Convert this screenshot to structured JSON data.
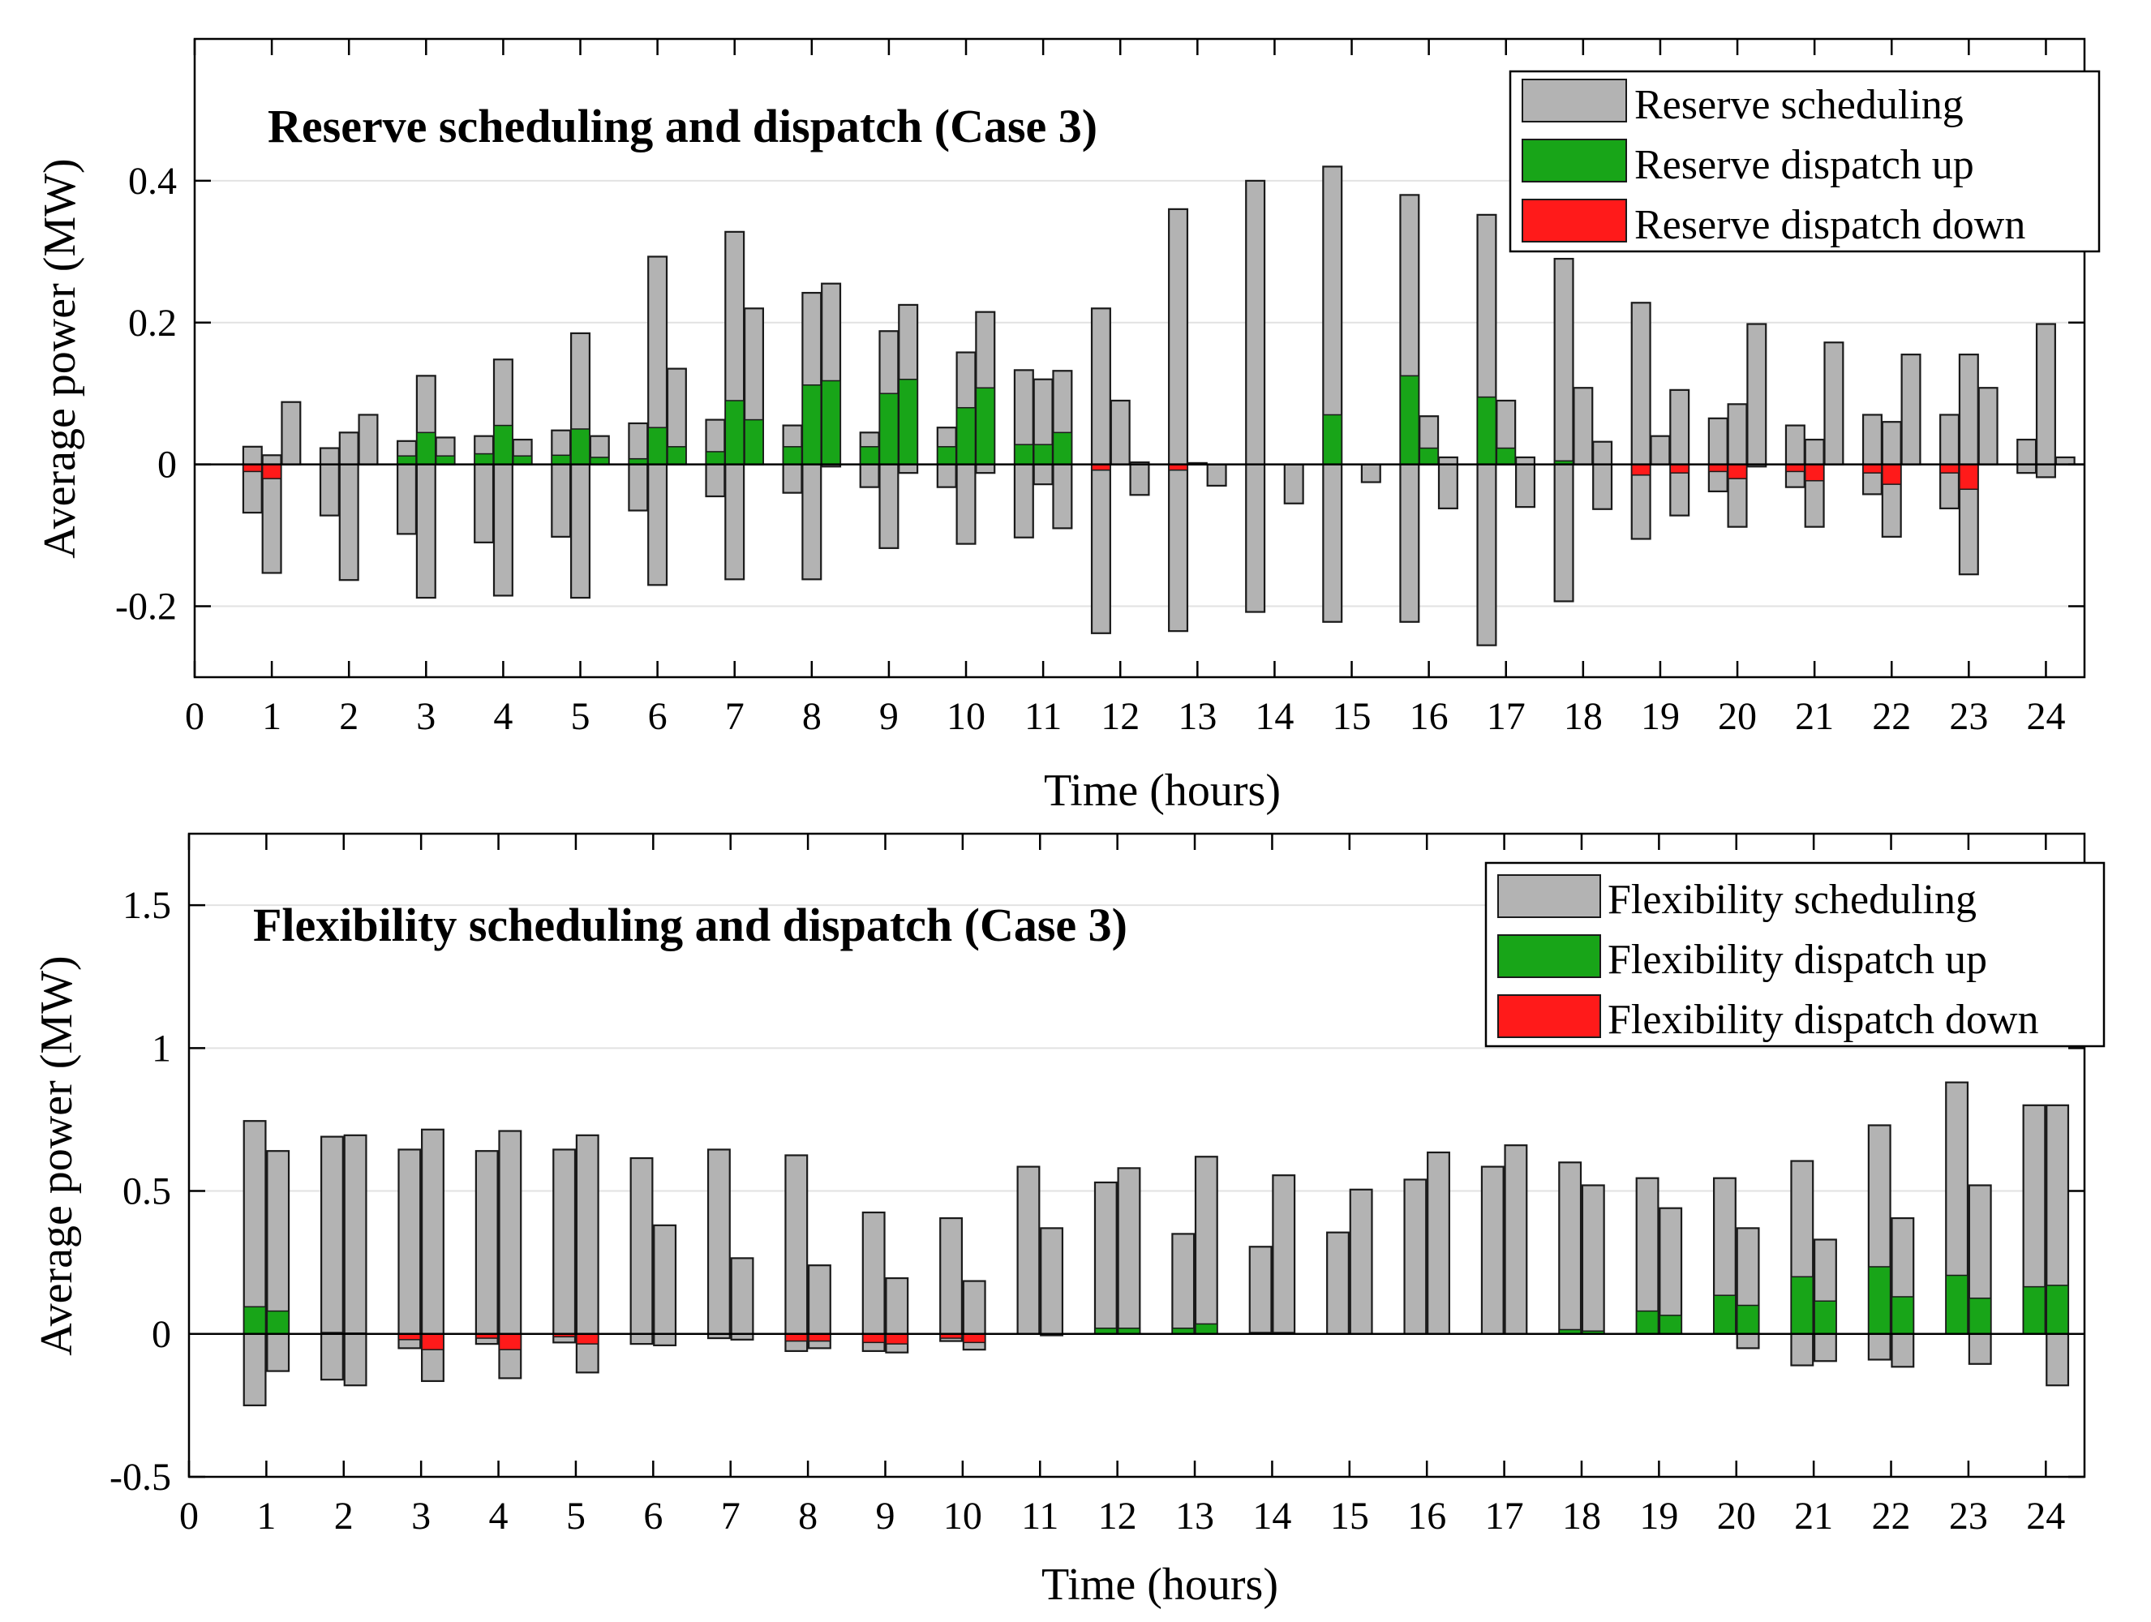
{
  "colors": {
    "scheduling": "#b3b3b3",
    "up": "#18a518",
    "down": "#ff1a1a",
    "edge": "#1a1a1a",
    "grid": "#e2e2e2"
  },
  "chart_data": [
    {
      "type": "bar",
      "title": "Reserve scheduling and dispatch (Case 3)",
      "xlabel": "Time (hours)",
      "ylabel": "Average power (MW)",
      "xlim": [
        0,
        24.5
      ],
      "ylim": [
        -0.3,
        0.6
      ],
      "xticks": [
        0,
        1,
        2,
        3,
        4,
        5,
        6,
        7,
        8,
        9,
        10,
        11,
        12,
        13,
        14,
        15,
        16,
        17,
        18,
        19,
        20,
        21,
        22,
        23,
        24
      ],
      "xticklabels": [
        "0",
        "1",
        "2",
        "3",
        "4",
        "5",
        "6",
        "7",
        "8",
        "9",
        "10",
        "11",
        "12",
        "13",
        "14",
        "15",
        "16",
        "17",
        "18",
        "19",
        "20",
        "21",
        "22",
        "23",
        "24"
      ],
      "yticks": [
        -0.2,
        0,
        0.2,
        0.4
      ],
      "yticklabels": [
        "-0.2",
        "0",
        "0.2",
        "0.4"
      ],
      "legend": [
        "Reserve scheduling",
        "Reserve dispatch up",
        "Reserve dispatch down"
      ],
      "legend_position": "top-right",
      "grid": true,
      "bar_width": 0.24,
      "bars": [
        {
          "x": 0.75,
          "top": 0.025,
          "bottom": -0.068,
          "up": 0,
          "down": -0.01
        },
        {
          "x": 1.0,
          "top": 0.013,
          "bottom": -0.153,
          "up": 0,
          "down": -0.02
        },
        {
          "x": 1.25,
          "top": 0.088,
          "bottom": 0,
          "up": 0,
          "down": 0
        },
        {
          "x": 1.75,
          "top": 0.023,
          "bottom": -0.072,
          "up": 0,
          "down": 0
        },
        {
          "x": 2.0,
          "top": 0.045,
          "bottom": -0.163,
          "up": 0,
          "down": 0
        },
        {
          "x": 2.25,
          "top": 0.07,
          "bottom": 0,
          "up": 0,
          "down": 0
        },
        {
          "x": 2.75,
          "top": 0.033,
          "bottom": -0.098,
          "up": 0.012,
          "down": 0
        },
        {
          "x": 3.0,
          "top": 0.125,
          "bottom": -0.188,
          "up": 0.045,
          "down": 0
        },
        {
          "x": 3.25,
          "top": 0.038,
          "bottom": 0,
          "up": 0.012,
          "down": 0
        },
        {
          "x": 3.75,
          "top": 0.04,
          "bottom": -0.11,
          "up": 0.015,
          "down": 0
        },
        {
          "x": 4.0,
          "top": 0.148,
          "bottom": -0.185,
          "up": 0.055,
          "down": 0
        },
        {
          "x": 4.25,
          "top": 0.035,
          "bottom": 0,
          "up": 0.012,
          "down": 0
        },
        {
          "x": 4.75,
          "top": 0.048,
          "bottom": -0.102,
          "up": 0.013,
          "down": 0
        },
        {
          "x": 5.0,
          "top": 0.185,
          "bottom": -0.188,
          "up": 0.05,
          "down": 0
        },
        {
          "x": 5.25,
          "top": 0.04,
          "bottom": 0,
          "up": 0.01,
          "down": 0
        },
        {
          "x": 5.75,
          "top": 0.058,
          "bottom": -0.065,
          "up": 0.008,
          "down": 0
        },
        {
          "x": 6.0,
          "top": 0.293,
          "bottom": -0.17,
          "up": 0.052,
          "down": 0
        },
        {
          "x": 6.25,
          "top": 0.135,
          "bottom": 0,
          "up": 0.025,
          "down": 0
        },
        {
          "x": 6.75,
          "top": 0.063,
          "bottom": -0.045,
          "up": 0.018,
          "down": 0
        },
        {
          "x": 7.0,
          "top": 0.328,
          "bottom": -0.162,
          "up": 0.09,
          "down": 0
        },
        {
          "x": 7.25,
          "top": 0.22,
          "bottom": 0,
          "up": 0.063,
          "down": 0
        },
        {
          "x": 7.75,
          "top": 0.055,
          "bottom": -0.04,
          "up": 0.025,
          "down": 0
        },
        {
          "x": 8.0,
          "top": 0.242,
          "bottom": -0.162,
          "up": 0.112,
          "down": 0
        },
        {
          "x": 8.25,
          "top": 0.255,
          "bottom": -0.003,
          "up": 0.118,
          "down": 0
        },
        {
          "x": 8.75,
          "top": 0.045,
          "bottom": -0.032,
          "up": 0.025,
          "down": 0
        },
        {
          "x": 9.0,
          "top": 0.188,
          "bottom": -0.118,
          "up": 0.1,
          "down": 0
        },
        {
          "x": 9.25,
          "top": 0.225,
          "bottom": -0.012,
          "up": 0.12,
          "down": 0
        },
        {
          "x": 9.75,
          "top": 0.052,
          "bottom": -0.032,
          "up": 0.025,
          "down": 0
        },
        {
          "x": 10.0,
          "top": 0.158,
          "bottom": -0.112,
          "up": 0.08,
          "down": 0
        },
        {
          "x": 10.25,
          "top": 0.215,
          "bottom": -0.012,
          "up": 0.108,
          "down": 0
        },
        {
          "x": 10.75,
          "top": 0.133,
          "bottom": -0.103,
          "up": 0.028,
          "down": 0
        },
        {
          "x": 11.0,
          "top": 0.12,
          "bottom": -0.028,
          "up": 0.028,
          "down": 0
        },
        {
          "x": 11.25,
          "top": 0.132,
          "bottom": -0.09,
          "up": 0.045,
          "down": 0
        },
        {
          "x": 11.75,
          "top": 0.22,
          "bottom": -0.238,
          "up": 0,
          "down": -0.008
        },
        {
          "x": 12.0,
          "top": 0.09,
          "bottom": 0,
          "up": 0,
          "down": 0
        },
        {
          "x": 12.25,
          "top": 0.003,
          "bottom": -0.043,
          "up": 0,
          "down": 0
        },
        {
          "x": 12.75,
          "top": 0.36,
          "bottom": -0.235,
          "up": 0,
          "down": -0.008
        },
        {
          "x": 13.0,
          "top": 0.002,
          "bottom": 0,
          "up": 0,
          "down": 0
        },
        {
          "x": 13.25,
          "top": 0,
          "bottom": -0.03,
          "up": 0,
          "down": 0
        },
        {
          "x": 13.75,
          "top": 0.4,
          "bottom": -0.208,
          "up": 0,
          "down": 0
        },
        {
          "x": 14.25,
          "top": 0,
          "bottom": -0.055,
          "up": 0,
          "down": 0
        },
        {
          "x": 14.75,
          "top": 0.42,
          "bottom": -0.222,
          "up": 0.07,
          "down": 0
        },
        {
          "x": 15.25,
          "top": 0,
          "bottom": -0.025,
          "up": 0,
          "down": 0
        },
        {
          "x": 15.75,
          "top": 0.38,
          "bottom": -0.222,
          "up": 0.125,
          "down": 0
        },
        {
          "x": 16.0,
          "top": 0.068,
          "bottom": 0,
          "up": 0.023,
          "down": 0
        },
        {
          "x": 16.25,
          "top": 0.01,
          "bottom": -0.062,
          "up": 0,
          "down": 0
        },
        {
          "x": 16.75,
          "top": 0.352,
          "bottom": -0.255,
          "up": 0.095,
          "down": 0
        },
        {
          "x": 17.0,
          "top": 0.09,
          "bottom": 0,
          "up": 0.023,
          "down": 0
        },
        {
          "x": 17.25,
          "top": 0.01,
          "bottom": -0.06,
          "up": 0,
          "down": 0
        },
        {
          "x": 17.75,
          "top": 0.29,
          "bottom": -0.193,
          "up": 0.005,
          "down": 0
        },
        {
          "x": 18.0,
          "top": 0.108,
          "bottom": 0,
          "up": 0,
          "down": 0
        },
        {
          "x": 18.25,
          "top": 0.032,
          "bottom": -0.063,
          "up": 0,
          "down": 0
        },
        {
          "x": 18.75,
          "top": 0.228,
          "bottom": -0.105,
          "up": 0,
          "down": -0.015
        },
        {
          "x": 19.0,
          "top": 0.04,
          "bottom": 0,
          "up": 0,
          "down": 0
        },
        {
          "x": 19.25,
          "top": 0.105,
          "bottom": -0.072,
          "up": 0,
          "down": -0.012
        },
        {
          "x": 19.75,
          "top": 0.065,
          "bottom": -0.038,
          "up": 0,
          "down": -0.01
        },
        {
          "x": 20.0,
          "top": 0.085,
          "bottom": -0.088,
          "up": 0,
          "down": -0.02
        },
        {
          "x": 20.25,
          "top": 0.198,
          "bottom": -0.003,
          "up": 0,
          "down": 0
        },
        {
          "x": 20.75,
          "top": 0.055,
          "bottom": -0.032,
          "up": 0,
          "down": -0.01
        },
        {
          "x": 21.0,
          "top": 0.035,
          "bottom": -0.088,
          "up": 0,
          "down": -0.023
        },
        {
          "x": 21.25,
          "top": 0.172,
          "bottom": 0,
          "up": 0,
          "down": 0
        },
        {
          "x": 21.75,
          "top": 0.07,
          "bottom": -0.042,
          "up": 0,
          "down": -0.012
        },
        {
          "x": 22.0,
          "top": 0.06,
          "bottom": -0.102,
          "up": 0,
          "down": -0.028
        },
        {
          "x": 22.25,
          "top": 0.155,
          "bottom": 0,
          "up": 0,
          "down": 0
        },
        {
          "x": 22.75,
          "top": 0.07,
          "bottom": -0.062,
          "up": 0,
          "down": -0.012
        },
        {
          "x": 23.0,
          "top": 0.155,
          "bottom": -0.155,
          "up": 0,
          "down": -0.035
        },
        {
          "x": 23.25,
          "top": 0.108,
          "bottom": 0,
          "up": 0,
          "down": 0
        },
        {
          "x": 23.75,
          "top": 0.035,
          "bottom": -0.012,
          "up": 0,
          "down": 0
        },
        {
          "x": 24.0,
          "top": 0.198,
          "bottom": -0.018,
          "up": 0,
          "down": 0
        },
        {
          "x": 24.25,
          "top": 0.01,
          "bottom": 0,
          "up": 0,
          "down": 0
        }
      ]
    },
    {
      "type": "bar",
      "title": "Flexibility scheduling and dispatch (Case 3)",
      "xlabel": "Time (hours)",
      "ylabel": "Average power (MW)",
      "xlim": [
        0,
        24.5
      ],
      "ylim": [
        -0.5,
        1.75
      ],
      "xticks": [
        0,
        1,
        2,
        3,
        4,
        5,
        6,
        7,
        8,
        9,
        10,
        11,
        12,
        13,
        14,
        15,
        16,
        17,
        18,
        19,
        20,
        21,
        22,
        23,
        24
      ],
      "xticklabels": [
        "0",
        "1",
        "2",
        "3",
        "4",
        "5",
        "6",
        "7",
        "8",
        "9",
        "10",
        "11",
        "12",
        "13",
        "14",
        "15",
        "16",
        "17",
        "18",
        "19",
        "20",
        "21",
        "22",
        "23",
        "24"
      ],
      "yticks": [
        -0.5,
        0,
        0.5,
        1,
        1.5
      ],
      "yticklabels": [
        "-0.5",
        "0",
        "0.5",
        "1",
        "1.5"
      ],
      "legend": [
        "Flexibility scheduling",
        "Flexibility dispatch up",
        "Flexibility dispatch down"
      ],
      "legend_position": "top-right",
      "grid": true,
      "bar_width": 0.28,
      "bars": [
        {
          "x": 0.85,
          "top": 0.745,
          "bottom": -0.25,
          "up": 0.095,
          "down": 0
        },
        {
          "x": 1.15,
          "top": 0.64,
          "bottom": -0.13,
          "up": 0.08,
          "down": 0
        },
        {
          "x": 1.85,
          "top": 0.69,
          "bottom": -0.16,
          "up": 0.005,
          "down": 0
        },
        {
          "x": 2.15,
          "top": 0.695,
          "bottom": -0.18,
          "up": 0.003,
          "down": 0
        },
        {
          "x": 2.85,
          "top": 0.645,
          "bottom": -0.05,
          "up": 0,
          "down": -0.02
        },
        {
          "x": 3.15,
          "top": 0.715,
          "bottom": -0.165,
          "up": 0,
          "down": -0.055
        },
        {
          "x": 3.85,
          "top": 0.64,
          "bottom": -0.035,
          "up": 0,
          "down": -0.015
        },
        {
          "x": 4.15,
          "top": 0.71,
          "bottom": -0.155,
          "up": 0,
          "down": -0.055
        },
        {
          "x": 4.85,
          "top": 0.645,
          "bottom": -0.03,
          "up": 0,
          "down": -0.01
        },
        {
          "x": 5.15,
          "top": 0.695,
          "bottom": -0.135,
          "up": 0,
          "down": -0.035
        },
        {
          "x": 5.85,
          "top": 0.615,
          "bottom": -0.035,
          "up": 0,
          "down": 0
        },
        {
          "x": 6.15,
          "top": 0.38,
          "bottom": -0.04,
          "up": 0,
          "down": 0
        },
        {
          "x": 6.85,
          "top": 0.645,
          "bottom": -0.015,
          "up": 0,
          "down": 0
        },
        {
          "x": 7.15,
          "top": 0.265,
          "bottom": -0.02,
          "up": 0,
          "down": 0
        },
        {
          "x": 7.85,
          "top": 0.625,
          "bottom": -0.06,
          "up": 0,
          "down": -0.025
        },
        {
          "x": 8.15,
          "top": 0.24,
          "bottom": -0.05,
          "up": 0,
          "down": -0.025
        },
        {
          "x": 8.85,
          "top": 0.425,
          "bottom": -0.06,
          "up": 0,
          "down": -0.03
        },
        {
          "x": 9.15,
          "top": 0.195,
          "bottom": -0.065,
          "up": 0,
          "down": -0.035
        },
        {
          "x": 9.85,
          "top": 0.405,
          "bottom": -0.025,
          "up": 0,
          "down": -0.015
        },
        {
          "x": 10.15,
          "top": 0.185,
          "bottom": -0.055,
          "up": 0,
          "down": -0.03
        },
        {
          "x": 10.85,
          "top": 0.585,
          "bottom": 0,
          "up": 0,
          "down": 0
        },
        {
          "x": 11.15,
          "top": 0.37,
          "bottom": -0.005,
          "up": 0,
          "down": 0
        },
        {
          "x": 11.85,
          "top": 0.53,
          "bottom": 0,
          "up": 0.02,
          "down": 0
        },
        {
          "x": 12.15,
          "top": 0.58,
          "bottom": 0,
          "up": 0.02,
          "down": 0
        },
        {
          "x": 12.85,
          "top": 0.35,
          "bottom": 0,
          "up": 0.02,
          "down": 0
        },
        {
          "x": 13.15,
          "top": 0.62,
          "bottom": 0,
          "up": 0.035,
          "down": 0
        },
        {
          "x": 13.85,
          "top": 0.305,
          "bottom": 0,
          "up": 0.005,
          "down": 0
        },
        {
          "x": 14.15,
          "top": 0.555,
          "bottom": 0,
          "up": 0.005,
          "down": 0
        },
        {
          "x": 14.85,
          "top": 0.355,
          "bottom": 0,
          "up": 0,
          "down": 0
        },
        {
          "x": 15.15,
          "top": 0.505,
          "bottom": 0,
          "up": 0,
          "down": 0
        },
        {
          "x": 15.85,
          "top": 0.54,
          "bottom": 0,
          "up": 0,
          "down": 0
        },
        {
          "x": 16.15,
          "top": 0.635,
          "bottom": 0,
          "up": 0,
          "down": 0
        },
        {
          "x": 16.85,
          "top": 0.585,
          "bottom": 0,
          "up": 0,
          "down": 0
        },
        {
          "x": 17.15,
          "top": 0.66,
          "bottom": 0,
          "up": 0,
          "down": 0
        },
        {
          "x": 17.85,
          "top": 0.6,
          "bottom": 0,
          "up": 0.015,
          "down": 0
        },
        {
          "x": 18.15,
          "top": 0.52,
          "bottom": 0,
          "up": 0.01,
          "down": 0
        },
        {
          "x": 18.85,
          "top": 0.545,
          "bottom": 0,
          "up": 0.08,
          "down": 0
        },
        {
          "x": 19.15,
          "top": 0.44,
          "bottom": 0,
          "up": 0.065,
          "down": 0
        },
        {
          "x": 19.85,
          "top": 0.545,
          "bottom": 0,
          "up": 0.135,
          "down": 0
        },
        {
          "x": 20.15,
          "top": 0.37,
          "bottom": -0.05,
          "up": 0.1,
          "down": 0
        },
        {
          "x": 20.85,
          "top": 0.605,
          "bottom": -0.11,
          "up": 0.2,
          "down": 0
        },
        {
          "x": 21.15,
          "top": 0.33,
          "bottom": -0.095,
          "up": 0.115,
          "down": 0
        },
        {
          "x": 21.85,
          "top": 0.73,
          "bottom": -0.09,
          "up": 0.235,
          "down": 0
        },
        {
          "x": 22.15,
          "top": 0.405,
          "bottom": -0.115,
          "up": 0.13,
          "down": 0
        },
        {
          "x": 22.85,
          "top": 0.88,
          "bottom": 0,
          "up": 0.205,
          "down": 0
        },
        {
          "x": 23.15,
          "top": 0.52,
          "bottom": -0.105,
          "up": 0.125,
          "down": 0
        },
        {
          "x": 23.85,
          "top": 0.8,
          "bottom": 0,
          "up": 0.165,
          "down": 0
        },
        {
          "x": 24.15,
          "top": 0.8,
          "bottom": -0.18,
          "up": 0.17,
          "down": 0
        }
      ]
    }
  ]
}
